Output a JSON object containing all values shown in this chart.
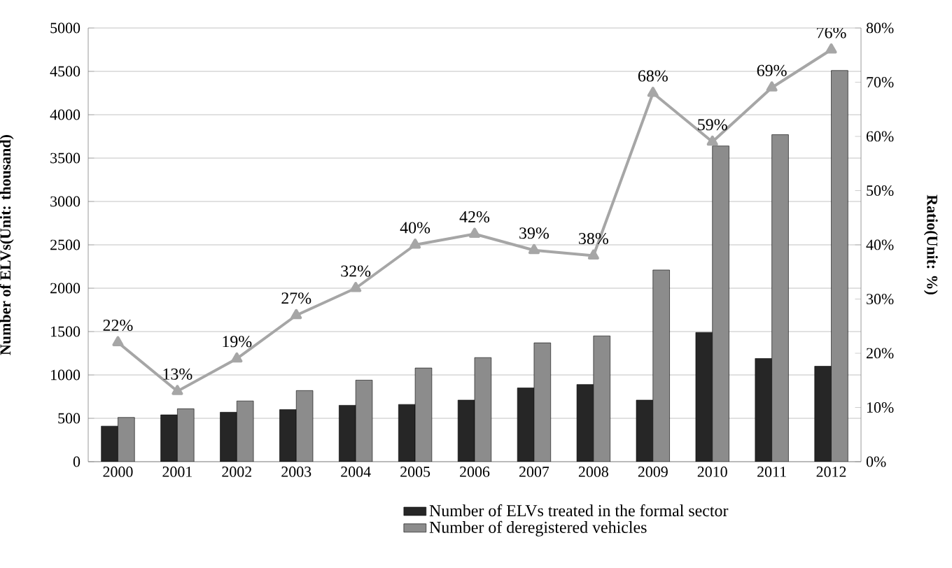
{
  "chart_data": {
    "type": "bar",
    "ylabel": "Number of ELVs(Unit: thousand)",
    "y2label": "Ratio(Unit: %)",
    "categories": [
      "2000",
      "2001",
      "2002",
      "2003",
      "2004",
      "2005",
      "2006",
      "2007",
      "2008",
      "2009",
      "2010",
      "2011",
      "2012"
    ],
    "series": [
      {
        "name": "Number of ELVs treated in the  formal sector",
        "color": "#262626",
        "values": [
          410,
          540,
          570,
          600,
          650,
          660,
          710,
          850,
          890,
          710,
          1490,
          1190,
          1100
        ]
      },
      {
        "name": "Number of deregistered vehicles",
        "color": "#8c8c8c",
        "values": [
          510,
          610,
          700,
          820,
          940,
          1080,
          1200,
          1370,
          1450,
          2210,
          3640,
          3770,
          4510
        ]
      },
      {
        "type": "line",
        "axis": "y2",
        "color": "#a6a6a6",
        "marker": "triangle",
        "values": [
          22,
          13,
          19,
          27,
          32,
          40,
          42,
          39,
          38,
          68,
          59,
          69,
          76
        ],
        "value_labels": [
          "22%",
          "13%",
          "19%",
          "27%",
          "32%",
          "40%",
          "42%",
          "39%",
          "38%",
          "68%",
          "59%",
          "69%",
          "76%"
        ]
      }
    ],
    "ylim": [
      0,
      5000
    ],
    "yticks": [
      0,
      500,
      1000,
      1500,
      2000,
      2500,
      3000,
      3500,
      4000,
      4500,
      5000
    ],
    "y2lim": [
      0,
      80
    ],
    "y2ticks": [
      {
        "value": 0,
        "label": "0%"
      },
      {
        "value": 10,
        "label": "10%"
      },
      {
        "value": 20,
        "label": "20%"
      },
      {
        "value": 30,
        "label": "30%"
      },
      {
        "value": 40,
        "label": "40%"
      },
      {
        "value": 50,
        "label": "50%"
      },
      {
        "value": 60,
        "label": "60%"
      },
      {
        "value": 70,
        "label": "70%"
      },
      {
        "value": 80,
        "label": "80%"
      }
    ],
    "grid": "y",
    "legend": "bottom"
  }
}
